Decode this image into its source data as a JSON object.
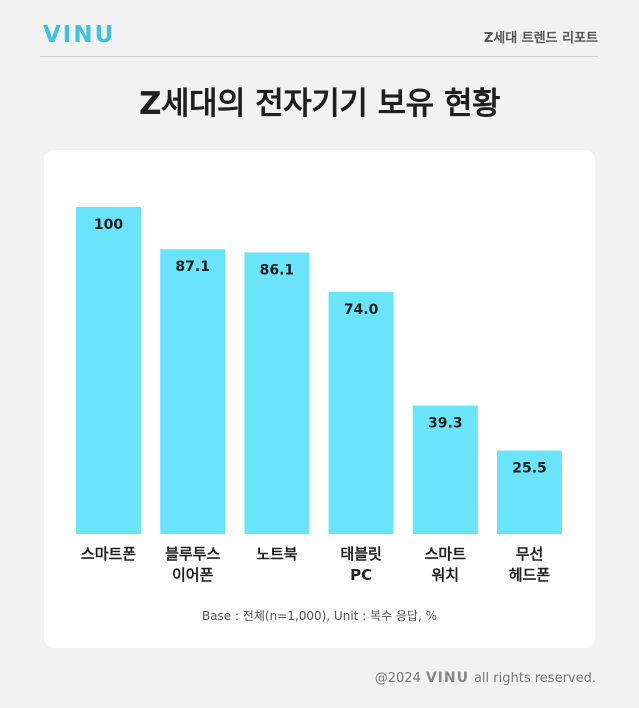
{
  "header": {
    "logo": "VINU",
    "report_label": "Z세대 트렌드 리포트"
  },
  "title": "Z세대의 전자기기 보유 현황",
  "colors": {
    "bar": "#6ae4fa",
    "accent": "#3cc3dd",
    "background": "#f2f2f2",
    "card": "#ffffff"
  },
  "chart_data": {
    "type": "bar",
    "categories": [
      [
        "스마트폰"
      ],
      [
        "블루투스",
        "이어폰"
      ],
      [
        "노트북"
      ],
      [
        "태블릿",
        "PC"
      ],
      [
        "스마트",
        "워치"
      ],
      [
        "무선",
        "헤드폰"
      ]
    ],
    "values": [
      100,
      87.1,
      86.1,
      74.0,
      39.3,
      25.5
    ],
    "value_labels": [
      "100",
      "87.1",
      "86.1",
      "74.0",
      "39.3",
      "25.5"
    ],
    "ylim": [
      0,
      100
    ],
    "grid": false,
    "legend": "none"
  },
  "footnote": "Base : 전체(n=1,000), Unit : 복수 응답, %",
  "footer": {
    "year": "@2024",
    "logo": "VINU",
    "rights": "all rights reserved."
  }
}
